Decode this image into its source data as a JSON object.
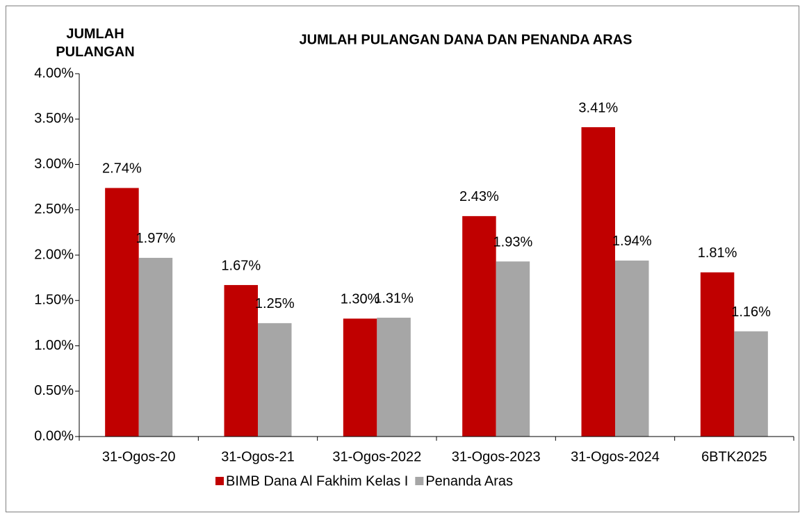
{
  "chart_data": {
    "type": "bar",
    "title": "JUMLAH PULANGAN DANA DAN PENANDA ARAS",
    "y_label": "JUMLAH PULANGAN",
    "categories": [
      "31-Ogos-20",
      "31-Ogos-21",
      "31-Ogos-2022",
      "31-Ogos-2023",
      "31-Ogos-2024",
      "6BTK2025"
    ],
    "series": [
      {
        "name": "BIMB Dana Al Fakhim Kelas I",
        "color": "#c00000",
        "values": [
          2.74,
          1.67,
          1.3,
          2.43,
          3.41,
          1.81
        ],
        "value_labels": [
          "2.74%",
          "1.67%",
          "1.30%",
          "2.43%",
          "3.41%",
          "1.81%"
        ]
      },
      {
        "name": "Penanda Aras",
        "color": "#a6a6a6",
        "values": [
          1.97,
          1.25,
          1.31,
          1.93,
          1.94,
          1.16
        ],
        "value_labels": [
          "1.97%",
          "1.25%",
          "1.31%",
          "1.93%",
          "1.94%",
          "1.16%"
        ]
      }
    ],
    "ylim": [
      0,
      4
    ],
    "yticks": [
      {
        "value": 0,
        "label": "0.00%"
      },
      {
        "value": 0.5,
        "label": "0.50%"
      },
      {
        "value": 1,
        "label": "1.00%"
      },
      {
        "value": 1.5,
        "label": "1.50%"
      },
      {
        "value": 2,
        "label": "2.00%"
      },
      {
        "value": 2.5,
        "label": "2.50%"
      },
      {
        "value": 3,
        "label": "3.00%"
      },
      {
        "value": 3.5,
        "label": "3.50%"
      },
      {
        "value": 4,
        "label": "4.00%"
      }
    ],
    "grid": false,
    "legend": "bottom"
  }
}
